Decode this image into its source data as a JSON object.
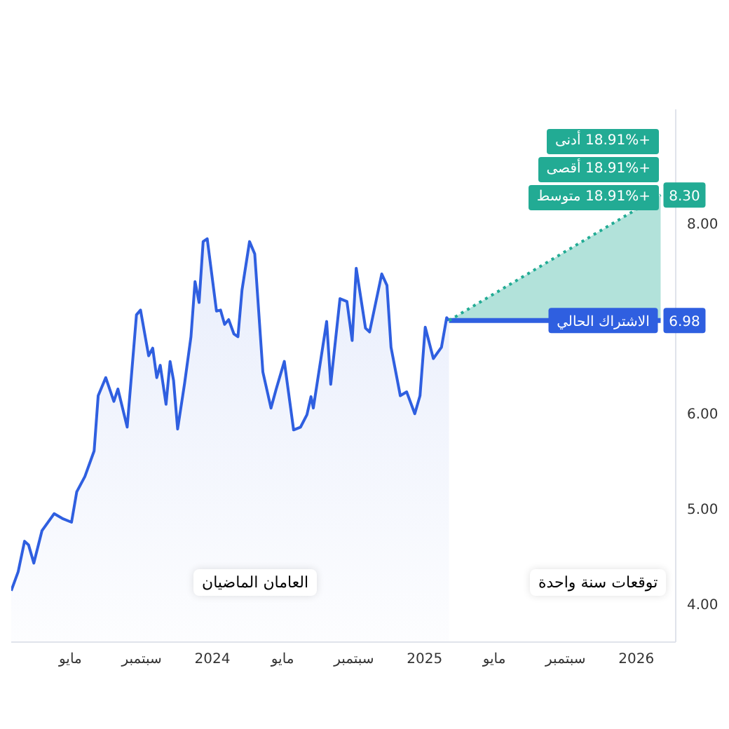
{
  "chart_data": {
    "type": "area",
    "xlim": [
      "2023-01-19",
      "2026-03-10"
    ],
    "ylim": [
      3.6,
      9.2
    ],
    "xticks": [
      {
        "value": "2023-05-01",
        "label": "مايو"
      },
      {
        "value": "2023-09-01",
        "label": "سبتمبر"
      },
      {
        "value": "2024-01-01",
        "label": "2024"
      },
      {
        "value": "2024-05-01",
        "label": "مايو"
      },
      {
        "value": "2024-09-01",
        "label": "سبتمبر"
      },
      {
        "value": "2025-01-01",
        "label": "2025"
      },
      {
        "value": "2025-05-01",
        "label": "مايو"
      },
      {
        "value": "2025-09-01",
        "label": "سبتمبر"
      },
      {
        "value": "2026-01-01",
        "label": "2026"
      }
    ],
    "yticks": [
      {
        "value": 4,
        "label": "4.00"
      },
      {
        "value": 5,
        "label": "5.00"
      },
      {
        "value": 6,
        "label": "6.00"
      },
      {
        "value": 8,
        "label": "8.00"
      }
    ],
    "legend": "right",
    "series": [
      {
        "color": "#2f5fe0",
        "x": [
          "2023-01-19",
          "2023-01-31",
          "2023-02-11",
          "2023-02-18",
          "2023-02-27",
          "2023-03-13",
          "2023-04-03",
          "2023-04-17",
          "2023-05-03",
          "2023-05-12",
          "2023-05-26",
          "2023-06-11",
          "2023-06-18",
          "2023-07-01",
          "2023-07-15",
          "2023-07-22",
          "2023-08-07",
          "2023-08-23",
          "2023-08-30",
          "2023-09-13",
          "2023-09-20",
          "2023-09-27",
          "2023-10-03",
          "2023-10-13",
          "2023-10-20",
          "2023-10-26",
          "2023-11-02",
          "2023-11-14",
          "2023-11-25",
          "2023-12-02",
          "2023-12-09",
          "2023-12-16",
          "2023-12-23",
          "2024-01-08",
          "2024-01-15",
          "2024-01-22",
          "2024-01-29",
          "2024-02-07",
          "2024-02-14",
          "2024-02-21",
          "2024-03-05",
          "2024-03-14",
          "2024-03-28",
          "2024-04-11",
          "2024-04-20",
          "2024-05-04",
          "2024-05-20",
          "2024-06-01",
          "2024-06-12",
          "2024-06-19",
          "2024-06-23",
          "2024-07-16",
          "2024-07-23",
          "2024-08-08",
          "2024-08-20",
          "2024-08-29",
          "2024-09-05",
          "2024-09-21",
          "2024-09-28",
          "2024-10-19",
          "2024-10-28",
          "2024-11-04",
          "2024-11-20",
          "2024-12-01",
          "2024-12-15",
          "2024-12-24",
          "2025-01-02",
          "2025-01-16",
          "2025-01-30",
          "2025-02-08",
          "2025-02-12"
        ],
        "values": [
          4.14,
          4.34,
          4.66,
          4.62,
          4.43,
          4.77,
          4.95,
          4.9,
          4.86,
          5.18,
          5.34,
          5.61,
          6.19,
          6.38,
          6.13,
          6.26,
          5.86,
          7.04,
          7.09,
          6.61,
          6.69,
          6.38,
          6.51,
          6.1,
          6.55,
          6.35,
          5.84,
          6.32,
          6.81,
          7.39,
          7.17,
          7.81,
          7.84,
          7.08,
          7.09,
          6.94,
          6.99,
          6.84,
          6.81,
          7.3,
          7.81,
          7.68,
          6.44,
          6.06,
          6.26,
          6.55,
          5.83,
          5.86,
          5.99,
          6.18,
          6.06,
          6.97,
          6.31,
          7.21,
          7.18,
          6.77,
          7.53,
          6.9,
          6.86,
          7.47,
          7.35,
          6.7,
          6.19,
          6.23,
          6,
          6.19,
          6.91,
          6.58,
          6.7,
          7.01,
          6.98
        ]
      },
      {
        "type": "line",
        "name": "الاشتراك الحالي",
        "color": "#2f5fe0",
        "x": [
          "2025-02-12",
          "2026-02-12"
        ],
        "values": [
          6.98,
          6.98
        ],
        "value_labels": [
          null,
          "6.98"
        ]
      },
      {
        "type": "line",
        "color": "#22ab94",
        "line_style": "dotted",
        "x": [
          "2025-02-12",
          "2026-02-12"
        ],
        "values": [
          6.98,
          8.3
        ],
        "lower": [
          6.98,
          6.98
        ],
        "upper": [
          6.98,
          8.3
        ],
        "value_labels": [
          null,
          "8.30"
        ]
      }
    ],
    "annotations": [
      "+18.91% أدنى",
      "+18.91% أقصى",
      "+18.91% متوسط",
      "العامان الماضيان",
      "توقعات سنة واحدة"
    ]
  }
}
